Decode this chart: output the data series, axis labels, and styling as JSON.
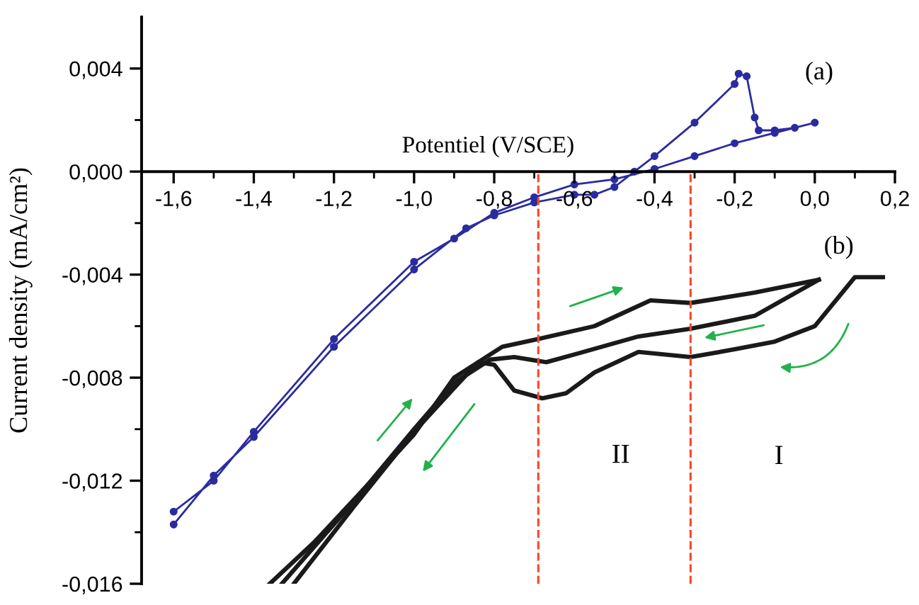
{
  "chart_data": {
    "type": "line",
    "xlabel": "Potentiel (V/SCE)",
    "ylabel": "Current density (mA/cm²)",
    "xlim": [
      -1.68,
      0.2
    ],
    "ylim": [
      -0.016,
      0.006
    ],
    "xticks": [
      {
        "value": -1.6,
        "label": "-1,6"
      },
      {
        "value": -1.4,
        "label": "-1,4"
      },
      {
        "value": -1.2,
        "label": "-1,2"
      },
      {
        "value": -1.0,
        "label": "-1,0"
      },
      {
        "value": -0.8,
        "label": "-0,8"
      },
      {
        "value": -0.6,
        "label": "-0,6"
      },
      {
        "value": -0.4,
        "label": "-0,4"
      },
      {
        "value": -0.2,
        "label": "-0,2"
      },
      {
        "value": 0.0,
        "label": "0,0"
      },
      {
        "value": 0.2,
        "label": "0,2"
      },
      {
        "value": -1.5,
        "label": null
      },
      {
        "value": -1.3,
        "label": null
      },
      {
        "value": -1.1,
        "label": null
      },
      {
        "value": -0.9,
        "label": null
      },
      {
        "value": -0.7,
        "label": null
      },
      {
        "value": -0.5,
        "label": null
      },
      {
        "value": -0.3,
        "label": null
      },
      {
        "value": -0.1,
        "label": null
      },
      {
        "value": 0.1,
        "label": null
      }
    ],
    "yticks": [
      {
        "value": 0.004,
        "label": "0,004"
      },
      {
        "value": 0.0,
        "label": "0,000"
      },
      {
        "value": -0.004,
        "label": "-0,004"
      },
      {
        "value": -0.008,
        "label": "-0,008"
      },
      {
        "value": -0.012,
        "label": "-0,012"
      },
      {
        "value": -0.016,
        "label": "-0,016"
      },
      {
        "value": 0.002,
        "label": null
      },
      {
        "value": -0.002,
        "label": null
      },
      {
        "value": -0.006,
        "label": null
      },
      {
        "value": -0.01,
        "label": null
      },
      {
        "value": -0.014,
        "label": null
      }
    ],
    "grid": false,
    "legend": false,
    "series": [
      {
        "name": "(a)",
        "color": "#2b2ba0",
        "marker": "circle",
        "x": [
          -1.6,
          -1.5,
          -1.4,
          -1.2,
          -1.0,
          -0.87,
          -0.8,
          -0.7,
          -0.6,
          -0.55,
          -0.5,
          -0.45,
          -0.4,
          -0.3,
          -0.2,
          -0.19,
          -0.17,
          -0.15,
          -0.14,
          -0.1,
          -0.05,
          0.0,
          -0.1,
          -0.2,
          -0.3,
          -0.4,
          -0.5,
          -0.6,
          -0.7,
          -0.8,
          -0.9,
          -1.0,
          -1.2,
          -1.4,
          -1.5,
          -1.6
        ],
        "values": [
          -0.0137,
          -0.0118,
          -0.0103,
          -0.0068,
          -0.0038,
          -0.0022,
          -0.0017,
          -0.0012,
          -0.0009,
          -0.0009,
          -0.0006,
          0.0,
          0.0006,
          0.0019,
          0.0034,
          0.0038,
          0.0037,
          0.0021,
          0.0016,
          0.0016,
          0.0017,
          0.0019,
          0.0015,
          0.0011,
          0.0006,
          0.0001,
          -0.0003,
          -0.0005,
          -0.001,
          -0.0016,
          -0.0026,
          -0.0035,
          -0.0065,
          -0.0101,
          -0.012,
          -0.0132
        ]
      },
      {
        "name": "(b)",
        "color": "#1a1a1a",
        "marker": "none",
        "x": [
          0.17,
          0.1,
          0.0,
          -0.1,
          -0.2,
          -0.31,
          -0.44,
          -0.55,
          -0.62,
          -0.68,
          -0.75,
          -0.8,
          -0.84,
          -0.9,
          -1.0,
          -1.1,
          -1.25,
          -1.36
        ],
        "values": [
          -0.0041,
          -0.0041,
          -0.006,
          -0.0066,
          -0.0069,
          -0.0072,
          -0.007,
          -0.0078,
          -0.0086,
          -0.0088,
          -0.0085,
          -0.0075,
          -0.0074,
          -0.008,
          -0.0102,
          -0.0119,
          -0.0144,
          -0.016
        ]
      },
      {
        "color": "#1a1a1a",
        "marker": "none",
        "x": [
          -1.3,
          -1.15,
          -1.0,
          -0.9,
          -0.84,
          -0.78,
          -0.69,
          -0.55,
          -0.41,
          -0.31,
          -0.15,
          0.01
        ],
        "values": [
          -0.016,
          -0.013,
          -0.0101,
          -0.0084,
          -0.0074,
          -0.0068,
          -0.0065,
          -0.006,
          -0.005,
          -0.0051,
          -0.0047,
          -0.0042
        ]
      },
      {
        "color": "#1a1a1a",
        "marker": "none",
        "x": [
          0.01,
          -0.15,
          -0.31,
          -0.44,
          -0.6,
          -0.67,
          -0.75,
          -0.81,
          -0.9,
          -1.0,
          -1.15,
          -1.33
        ],
        "values": [
          -0.0042,
          -0.0056,
          -0.0061,
          -0.0064,
          -0.0071,
          -0.0074,
          -0.0072,
          -0.0073,
          -0.0082,
          -0.01,
          -0.0128,
          -0.016
        ]
      }
    ],
    "ref_lines": [
      {
        "axis": "x",
        "value": -0.69,
        "color": "#ff4422",
        "line_style": "dashed"
      },
      {
        "axis": "x",
        "value": -0.31,
        "color": "#ff4422",
        "line_style": "dashed"
      }
    ],
    "annotations": [
      "II",
      "I"
    ]
  }
}
